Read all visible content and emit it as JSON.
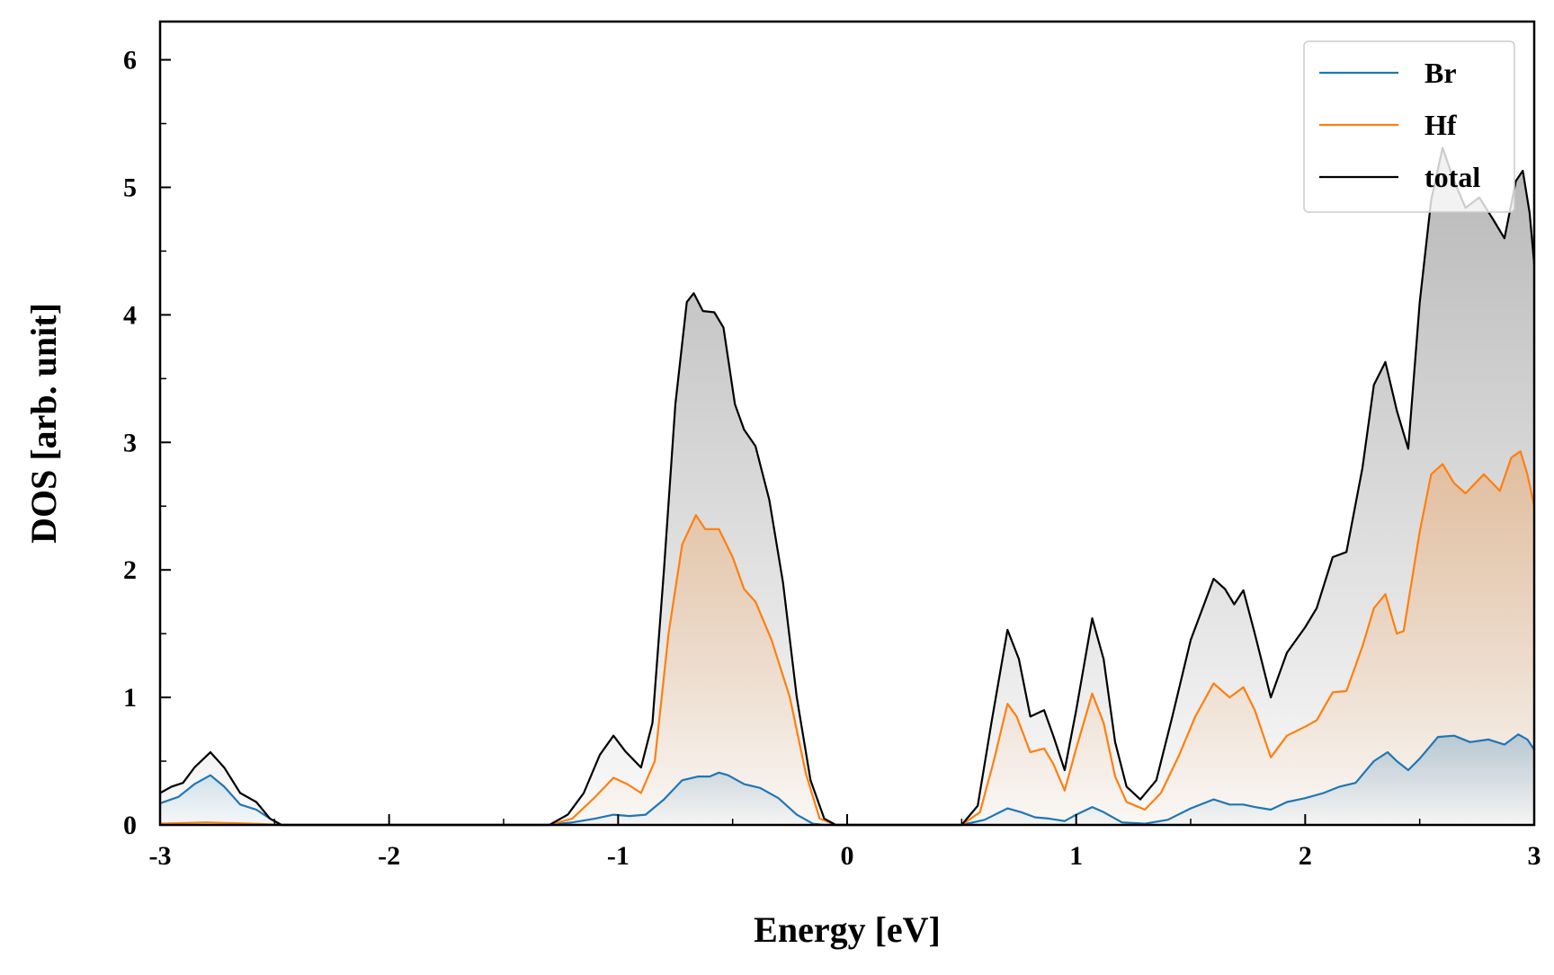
{
  "chart_data": {
    "type": "area",
    "title": "",
    "xlabel": "Energy [eV]",
    "ylabel": "DOS [arb. unit]",
    "xlim": [
      -3,
      3
    ],
    "ylim": [
      0,
      6.3
    ],
    "x_ticks": [
      -3,
      -2,
      -1,
      0,
      1,
      2,
      3
    ],
    "x_tick_labels": [
      "-3",
      "-2",
      "-1",
      "0",
      "1",
      "2",
      "3"
    ],
    "y_ticks": [
      0,
      1,
      2,
      3,
      4,
      5,
      6
    ],
    "y_tick_labels": [
      "0",
      "1",
      "2",
      "3",
      "4",
      "5",
      "6"
    ],
    "grid": false,
    "legend_position": "top-right",
    "series": [
      {
        "name": "Br",
        "color": "#1f77b4",
        "points": [
          [
            -3.0,
            0.17
          ],
          [
            -2.92,
            0.22
          ],
          [
            -2.85,
            0.32
          ],
          [
            -2.78,
            0.39
          ],
          [
            -2.72,
            0.3
          ],
          [
            -2.65,
            0.16
          ],
          [
            -2.58,
            0.12
          ],
          [
            -2.52,
            0.05
          ],
          [
            -2.47,
            0.0
          ],
          [
            -1.3,
            0.0
          ],
          [
            -1.2,
            0.02
          ],
          [
            -1.1,
            0.05
          ],
          [
            -1.02,
            0.08
          ],
          [
            -0.95,
            0.07
          ],
          [
            -0.88,
            0.08
          ],
          [
            -0.8,
            0.2
          ],
          [
            -0.72,
            0.35
          ],
          [
            -0.65,
            0.38
          ],
          [
            -0.6,
            0.38
          ],
          [
            -0.56,
            0.41
          ],
          [
            -0.52,
            0.39
          ],
          [
            -0.45,
            0.32
          ],
          [
            -0.38,
            0.29
          ],
          [
            -0.3,
            0.21
          ],
          [
            -0.22,
            0.08
          ],
          [
            -0.15,
            0.01
          ],
          [
            -0.1,
            0.0
          ],
          [
            0.5,
            0.0
          ],
          [
            0.6,
            0.04
          ],
          [
            0.7,
            0.13
          ],
          [
            0.76,
            0.1
          ],
          [
            0.82,
            0.06
          ],
          [
            0.88,
            0.05
          ],
          [
            0.95,
            0.03
          ],
          [
            1.0,
            0.08
          ],
          [
            1.07,
            0.14
          ],
          [
            1.12,
            0.1
          ],
          [
            1.2,
            0.02
          ],
          [
            1.3,
            0.01
          ],
          [
            1.4,
            0.04
          ],
          [
            1.5,
            0.13
          ],
          [
            1.6,
            0.2
          ],
          [
            1.67,
            0.16
          ],
          [
            1.73,
            0.16
          ],
          [
            1.78,
            0.14
          ],
          [
            1.85,
            0.12
          ],
          [
            1.92,
            0.18
          ],
          [
            2.0,
            0.21
          ],
          [
            2.08,
            0.25
          ],
          [
            2.15,
            0.3
          ],
          [
            2.22,
            0.33
          ],
          [
            2.3,
            0.5
          ],
          [
            2.36,
            0.57
          ],
          [
            2.4,
            0.5
          ],
          [
            2.45,
            0.43
          ],
          [
            2.5,
            0.52
          ],
          [
            2.58,
            0.69
          ],
          [
            2.65,
            0.7
          ],
          [
            2.72,
            0.65
          ],
          [
            2.8,
            0.67
          ],
          [
            2.87,
            0.63
          ],
          [
            2.93,
            0.71
          ],
          [
            2.97,
            0.67
          ],
          [
            3.0,
            0.59
          ]
        ]
      },
      {
        "name": "Hf",
        "color": "#ff7f0e",
        "points": [
          [
            -3.0,
            0.01
          ],
          [
            -2.8,
            0.02
          ],
          [
            -2.6,
            0.01
          ],
          [
            -2.47,
            0.0
          ],
          [
            -1.3,
            0.0
          ],
          [
            -1.2,
            0.05
          ],
          [
            -1.1,
            0.22
          ],
          [
            -1.02,
            0.37
          ],
          [
            -0.96,
            0.32
          ],
          [
            -0.9,
            0.25
          ],
          [
            -0.84,
            0.5
          ],
          [
            -0.78,
            1.5
          ],
          [
            -0.72,
            2.2
          ],
          [
            -0.66,
            2.43
          ],
          [
            -0.62,
            2.32
          ],
          [
            -0.56,
            2.32
          ],
          [
            -0.5,
            2.1
          ],
          [
            -0.45,
            1.85
          ],
          [
            -0.4,
            1.75
          ],
          [
            -0.33,
            1.45
          ],
          [
            -0.25,
            1.0
          ],
          [
            -0.18,
            0.4
          ],
          [
            -0.12,
            0.05
          ],
          [
            -0.05,
            0.0
          ],
          [
            0.5,
            0.0
          ],
          [
            0.58,
            0.1
          ],
          [
            0.64,
            0.5
          ],
          [
            0.7,
            0.95
          ],
          [
            0.74,
            0.85
          ],
          [
            0.8,
            0.57
          ],
          [
            0.86,
            0.6
          ],
          [
            0.9,
            0.48
          ],
          [
            0.95,
            0.27
          ],
          [
            1.0,
            0.6
          ],
          [
            1.07,
            1.03
          ],
          [
            1.12,
            0.8
          ],
          [
            1.17,
            0.38
          ],
          [
            1.22,
            0.18
          ],
          [
            1.3,
            0.12
          ],
          [
            1.37,
            0.25
          ],
          [
            1.45,
            0.55
          ],
          [
            1.52,
            0.85
          ],
          [
            1.6,
            1.11
          ],
          [
            1.67,
            1.0
          ],
          [
            1.73,
            1.08
          ],
          [
            1.78,
            0.9
          ],
          [
            1.85,
            0.53
          ],
          [
            1.92,
            0.7
          ],
          [
            2.0,
            0.77
          ],
          [
            2.05,
            0.82
          ],
          [
            2.12,
            1.04
          ],
          [
            2.18,
            1.05
          ],
          [
            2.25,
            1.4
          ],
          [
            2.3,
            1.7
          ],
          [
            2.35,
            1.81
          ],
          [
            2.4,
            1.5
          ],
          [
            2.43,
            1.52
          ],
          [
            2.5,
            2.3
          ],
          [
            2.55,
            2.75
          ],
          [
            2.6,
            2.83
          ],
          [
            2.65,
            2.68
          ],
          [
            2.7,
            2.6
          ],
          [
            2.78,
            2.75
          ],
          [
            2.85,
            2.62
          ],
          [
            2.9,
            2.88
          ],
          [
            2.94,
            2.93
          ],
          [
            2.97,
            2.75
          ],
          [
            3.0,
            2.5
          ]
        ]
      },
      {
        "name": "total",
        "color": "#000000",
        "points": [
          [
            -3.0,
            0.25
          ],
          [
            -2.95,
            0.3
          ],
          [
            -2.9,
            0.33
          ],
          [
            -2.85,
            0.45
          ],
          [
            -2.78,
            0.57
          ],
          [
            -2.72,
            0.45
          ],
          [
            -2.65,
            0.25
          ],
          [
            -2.58,
            0.18
          ],
          [
            -2.52,
            0.05
          ],
          [
            -2.47,
            0.0
          ],
          [
            -1.3,
            0.0
          ],
          [
            -1.22,
            0.08
          ],
          [
            -1.15,
            0.25
          ],
          [
            -1.08,
            0.55
          ],
          [
            -1.02,
            0.7
          ],
          [
            -0.97,
            0.58
          ],
          [
            -0.9,
            0.45
          ],
          [
            -0.85,
            0.8
          ],
          [
            -0.8,
            2.0
          ],
          [
            -0.75,
            3.3
          ],
          [
            -0.7,
            4.1
          ],
          [
            -0.67,
            4.17
          ],
          [
            -0.63,
            4.03
          ],
          [
            -0.58,
            4.02
          ],
          [
            -0.54,
            3.9
          ],
          [
            -0.49,
            3.3
          ],
          [
            -0.45,
            3.1
          ],
          [
            -0.4,
            2.97
          ],
          [
            -0.34,
            2.55
          ],
          [
            -0.28,
            1.9
          ],
          [
            -0.22,
            1.0
          ],
          [
            -0.16,
            0.35
          ],
          [
            -0.1,
            0.05
          ],
          [
            -0.05,
            0.0
          ],
          [
            0.5,
            0.0
          ],
          [
            0.57,
            0.15
          ],
          [
            0.63,
            0.8
          ],
          [
            0.7,
            1.53
          ],
          [
            0.75,
            1.3
          ],
          [
            0.8,
            0.85
          ],
          [
            0.86,
            0.9
          ],
          [
            0.9,
            0.7
          ],
          [
            0.95,
            0.43
          ],
          [
            1.0,
            0.9
          ],
          [
            1.07,
            1.62
          ],
          [
            1.12,
            1.3
          ],
          [
            1.17,
            0.65
          ],
          [
            1.22,
            0.3
          ],
          [
            1.28,
            0.2
          ],
          [
            1.35,
            0.35
          ],
          [
            1.42,
            0.85
          ],
          [
            1.5,
            1.45
          ],
          [
            1.6,
            1.93
          ],
          [
            1.65,
            1.85
          ],
          [
            1.69,
            1.73
          ],
          [
            1.73,
            1.84
          ],
          [
            1.78,
            1.5
          ],
          [
            1.85,
            1.0
          ],
          [
            1.92,
            1.35
          ],
          [
            2.0,
            1.55
          ],
          [
            2.05,
            1.7
          ],
          [
            2.12,
            2.1
          ],
          [
            2.18,
            2.14
          ],
          [
            2.25,
            2.8
          ],
          [
            2.3,
            3.45
          ],
          [
            2.35,
            3.63
          ],
          [
            2.4,
            3.25
          ],
          [
            2.45,
            2.95
          ],
          [
            2.5,
            4.1
          ],
          [
            2.55,
            4.9
          ],
          [
            2.6,
            5.31
          ],
          [
            2.65,
            5.05
          ],
          [
            2.7,
            4.84
          ],
          [
            2.76,
            4.92
          ],
          [
            2.82,
            4.75
          ],
          [
            2.87,
            4.6
          ],
          [
            2.92,
            5.05
          ],
          [
            2.95,
            5.13
          ],
          [
            2.98,
            4.8
          ],
          [
            3.0,
            4.4
          ]
        ]
      }
    ]
  }
}
